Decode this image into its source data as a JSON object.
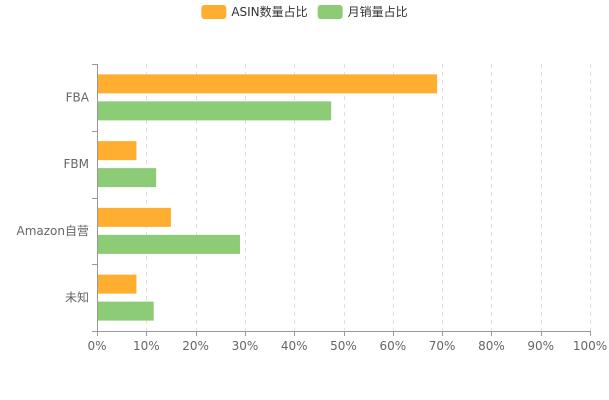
{
  "chart_data": {
    "type": "bar",
    "orientation": "horizontal",
    "categories": [
      "FBA",
      "FBM",
      "Amazon自营",
      "未知"
    ],
    "series": [
      {
        "name": "ASIN数量占比",
        "color": "#FFAE2F",
        "values": [
          69,
          8,
          15,
          8
        ]
      },
      {
        "name": "月销量占比",
        "color": "#8DCC76",
        "values": [
          47.5,
          12,
          29,
          11.5
        ]
      }
    ],
    "xlim": [
      0,
      100
    ],
    "xticks": [
      "0%",
      "10%",
      "20%",
      "30%",
      "40%",
      "50%",
      "60%",
      "70%",
      "80%",
      "90%",
      "100%"
    ],
    "grid": true,
    "legend": "top-center"
  }
}
